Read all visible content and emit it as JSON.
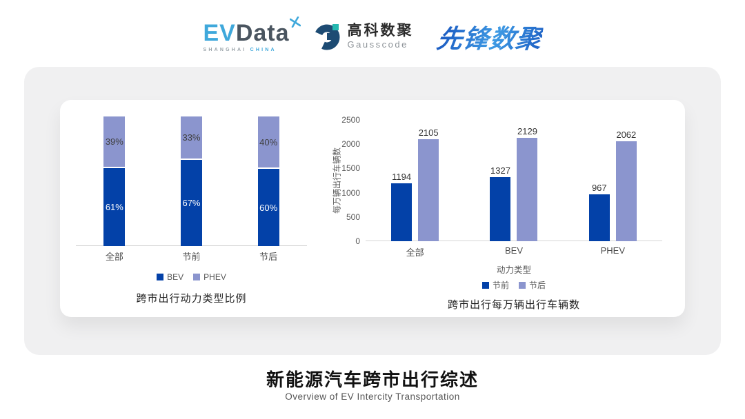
{
  "header": {
    "evdata": {
      "ev": "EV",
      "data": "Data",
      "sub_left": "SHANGHAI",
      "sub_right": "CHINA"
    },
    "gausscode": {
      "cn": "高科数聚",
      "en": "Gausscode"
    },
    "xianfeng": {
      "text": "先锋数聚"
    }
  },
  "icons": {
    "evdata_sparkle": "four-point star cross, light blue",
    "gausscode_mark": "navy C ring with teal square"
  },
  "colors": {
    "bar_dark_blue": "#0341a8",
    "bar_light_blue": "#8b95ce",
    "panel_gray": "#f0f0f1",
    "axis_line": "#d6d6d6",
    "evdata_blue": "#3fa8db",
    "evdata_dark": "#4a5560",
    "gausscode_navy": "#1d4b73",
    "gausscode_teal": "#25b8b0",
    "xianfeng_blue": "#2a7cd4"
  },
  "chart_data": [
    {
      "id": "power-type-share",
      "type": "bar",
      "subtype": "stacked-percent",
      "title": "跨市出行动力类型比例",
      "categories": [
        "全部",
        "节前",
        "节后"
      ],
      "series": [
        {
          "name": "BEV",
          "color": "#0341a8",
          "label_color": "#ffffff",
          "values": [
            61,
            67,
            60
          ],
          "labels": [
            "61%",
            "67%",
            "60%"
          ]
        },
        {
          "name": "PHEV",
          "color": "#8b95ce",
          "label_color": "#3f3f3f",
          "values": [
            39,
            33,
            40
          ],
          "labels": [
            "39%",
            "33%",
            "40%"
          ]
        }
      ],
      "xlabel": "",
      "ylabel": "",
      "ylim": [
        0,
        100
      ],
      "grid": false,
      "legend_position": "bottom"
    },
    {
      "id": "trips-per-10k-vehicles",
      "type": "bar",
      "subtype": "grouped",
      "title": "跨市出行每万辆出行车辆数",
      "categories": [
        "全部",
        "BEV",
        "PHEV"
      ],
      "series": [
        {
          "name": "节前",
          "color": "#0341a8",
          "values": [
            1194,
            1327,
            967
          ]
        },
        {
          "name": "节后",
          "color": "#8b95ce",
          "values": [
            2105,
            2129,
            2062
          ]
        }
      ],
      "xlabel": "动力类型",
      "ylabel": "每万辆出行车辆数",
      "ylim": [
        0,
        2500
      ],
      "yticks": [
        0,
        500,
        1000,
        1500,
        2000,
        2500
      ],
      "grid": false,
      "legend_position": "bottom"
    }
  ],
  "footer": {
    "title": "新能源汽车跨市出行综述",
    "subtitle": "Overview of EV Intercity Transportation"
  }
}
